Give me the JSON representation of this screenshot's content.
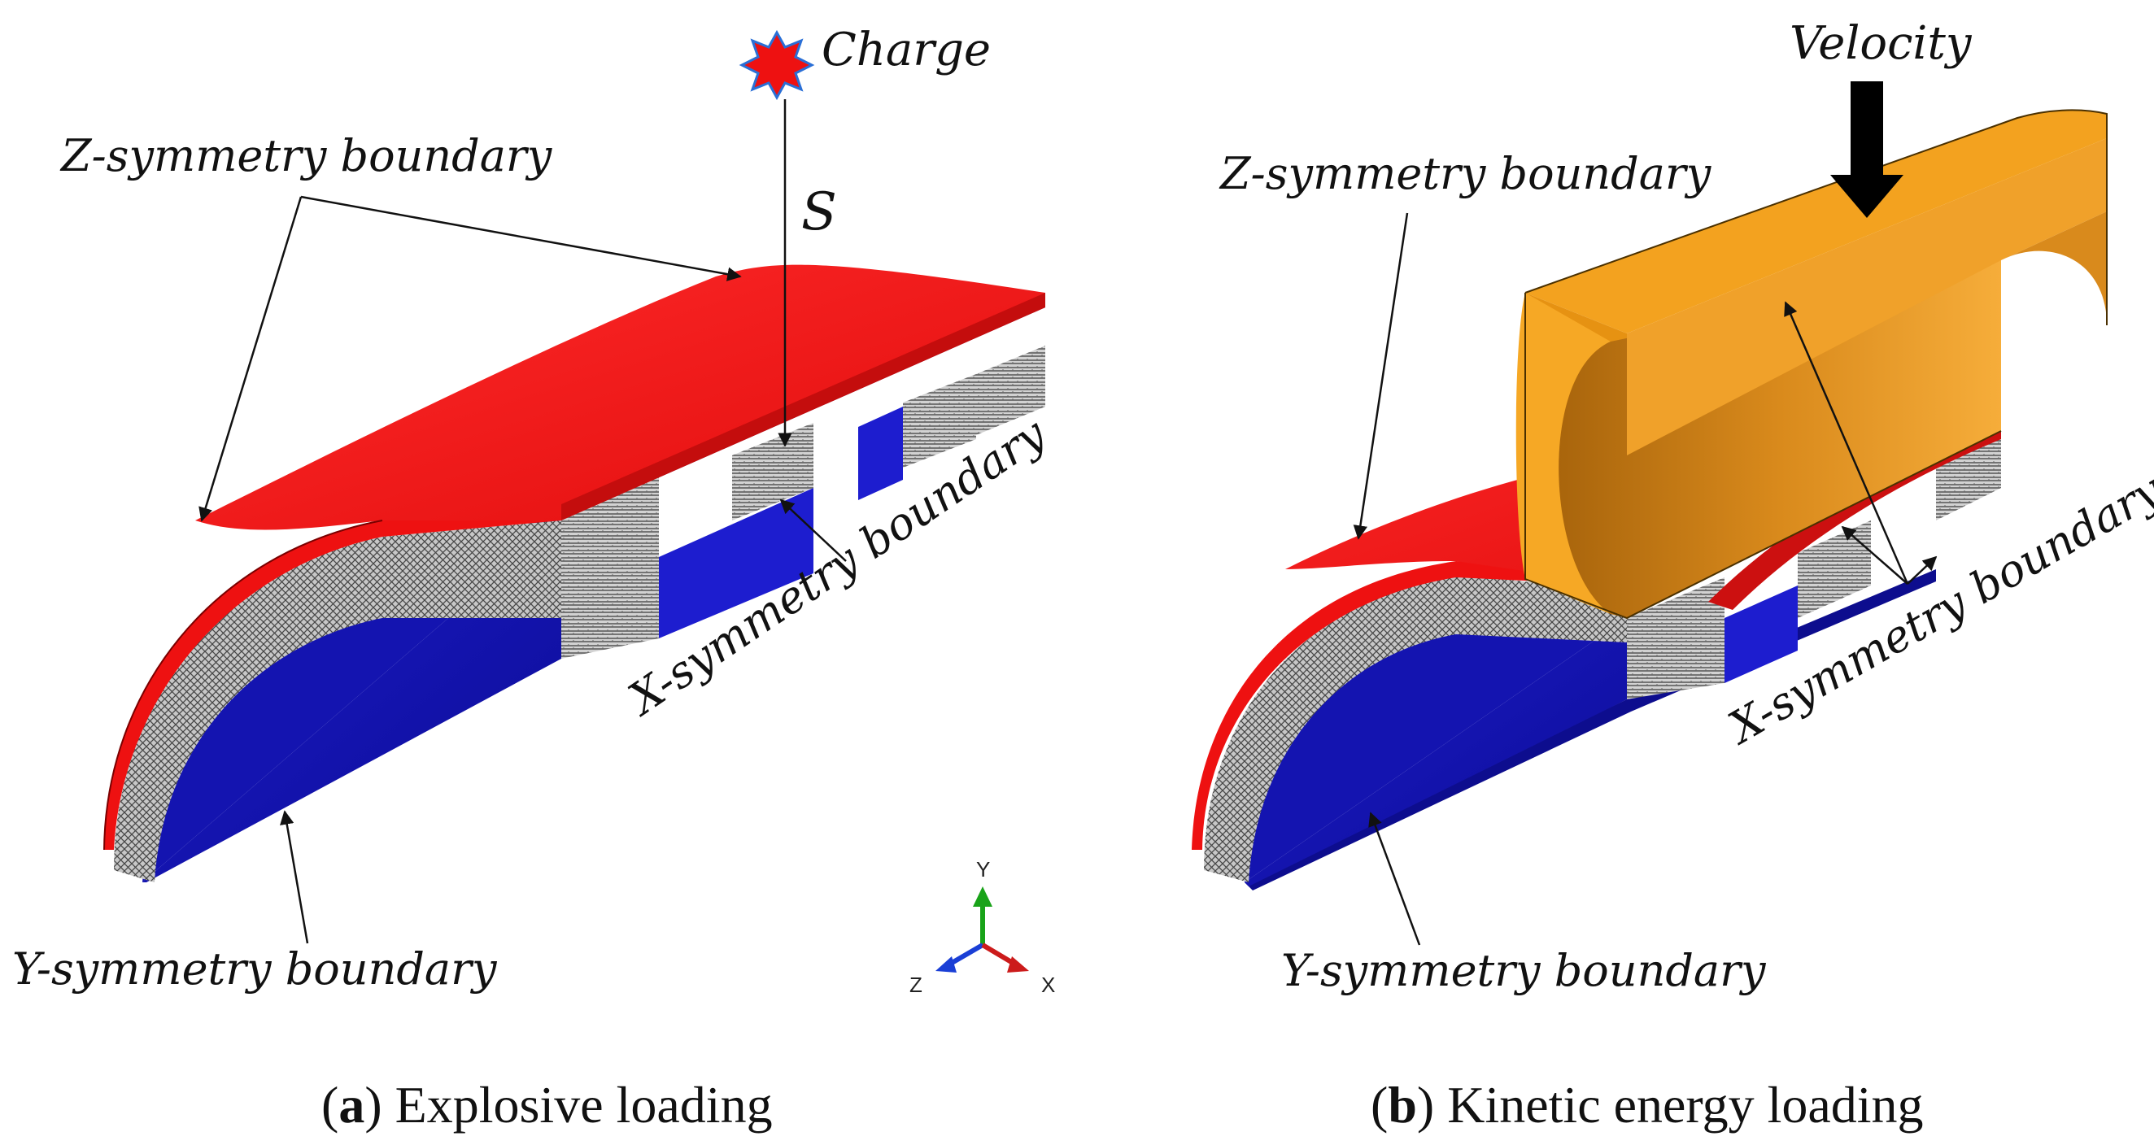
{
  "panel_a": {
    "charge_label": "Charge",
    "standoff_label": "S",
    "z_symmetry_label": "Z-symmetry boundary",
    "x_symmetry_label": "X-symmetry boundary",
    "y_symmetry_label": "Y-symmetry boundary",
    "caption_letter": "a",
    "caption_text": "Explosive loading"
  },
  "panel_b": {
    "velocity_label": "Velocity",
    "z_symmetry_label": "Z-symmetry boundary",
    "x_symmetry_label": "X-symmetry boundary",
    "y_symmetry_label": "Y-symmetry boundary",
    "caption_letter": "b",
    "caption_text": "Kinetic energy loading"
  },
  "axes_triad": {
    "y": "Y",
    "z": "Z",
    "x": "X"
  },
  "caption_open_paren": "(",
  "caption_close_paren": ")",
  "colors": {
    "face_sheet": "#ee1111",
    "back_sheet": "#1010b8",
    "core": "#b8b8b8",
    "projectile": "#f3a21f",
    "axis_y": "#19a319",
    "axis_z": "#1a3fd6",
    "axis_x": "#cc1b1b"
  }
}
